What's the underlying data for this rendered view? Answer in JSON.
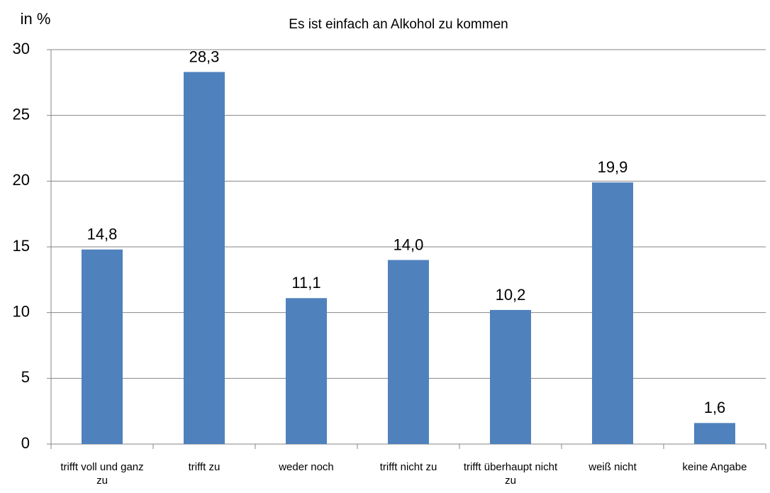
{
  "chart_data": {
    "type": "bar",
    "title": "Es ist einfach an Alkohol zu kommen",
    "y_label": "in %",
    "categories": [
      "trifft voll und ganz zu",
      "trifft zu",
      "weder noch",
      "trifft nicht zu",
      "trifft überhaupt nicht zu",
      "weiß nicht",
      "keine Angabe"
    ],
    "values": [
      14.8,
      28.3,
      11.1,
      14.0,
      10.2,
      19.9,
      1.6
    ],
    "value_labels": [
      "14,8",
      "28,3",
      "11,1",
      "14,0",
      "10,2",
      "19,9",
      "1,6"
    ],
    "color": "#4f81bd",
    "ylim": [
      0,
      30
    ],
    "yticks": [
      0,
      5,
      10,
      15,
      20,
      25,
      30
    ],
    "grid": true
  }
}
